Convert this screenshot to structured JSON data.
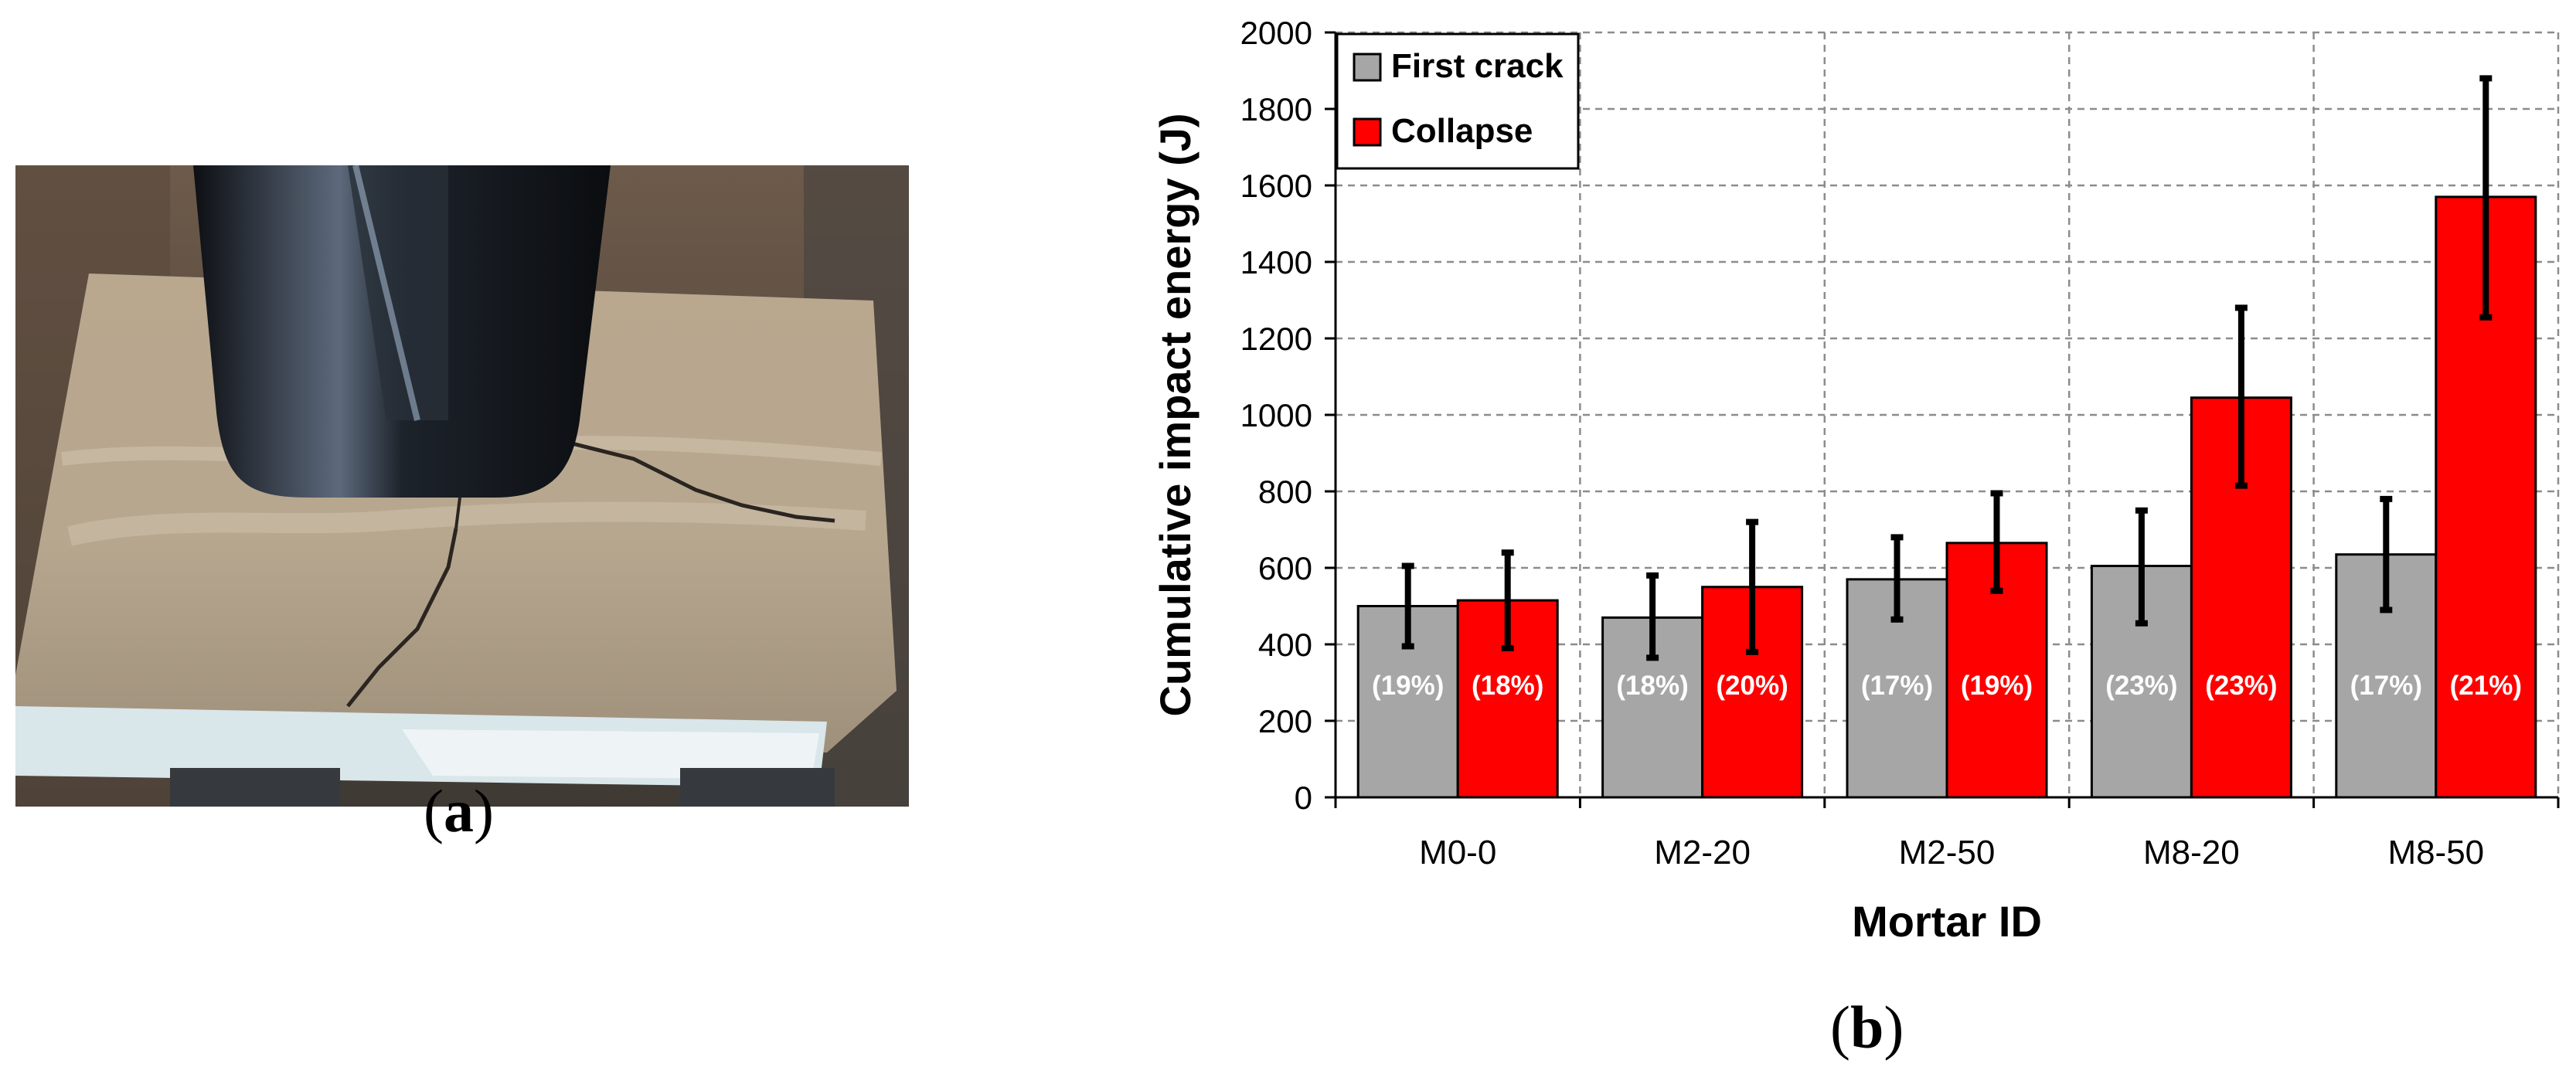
{
  "panel_labels": {
    "a": "(a)",
    "b": "(b)"
  },
  "photo": {
    "description_icon": "impact-test-photo"
  },
  "colors": {
    "first_crack": "#a6a6a6",
    "collapse": "#ff0000",
    "grid": "#8c8c8c",
    "error_bar": "#000000"
  },
  "chart_data": {
    "type": "bar",
    "xlabel": "Mortar ID",
    "ylabel": "Cumulative impact energy (J)",
    "ylim": [
      0,
      2000
    ],
    "yticks": [
      0,
      200,
      400,
      600,
      800,
      1000,
      1200,
      1400,
      1600,
      1800,
      2000
    ],
    "categories": [
      "M0-0",
      "M2-20",
      "M2-50",
      "M8-20",
      "M8-50"
    ],
    "legend_position": "top-left",
    "grid": true,
    "series": [
      {
        "name": "First crack",
        "values": [
          500,
          470,
          570,
          605,
          635
        ],
        "error_low": [
          395,
          365,
          465,
          455,
          490
        ],
        "error_high": [
          605,
          580,
          680,
          750,
          780
        ],
        "labels": [
          "(19%)",
          "(18%)",
          "(17%)",
          "(23%)",
          "(17%)"
        ]
      },
      {
        "name": "Collapse",
        "values": [
          515,
          550,
          665,
          1045,
          1570
        ],
        "error_low": [
          390,
          380,
          540,
          815,
          1255
        ],
        "error_high": [
          640,
          720,
          795,
          1280,
          1880
        ],
        "labels": [
          "(18%)",
          "(20%)",
          "(19%)",
          "(23%)",
          "(21%)"
        ]
      }
    ]
  }
}
